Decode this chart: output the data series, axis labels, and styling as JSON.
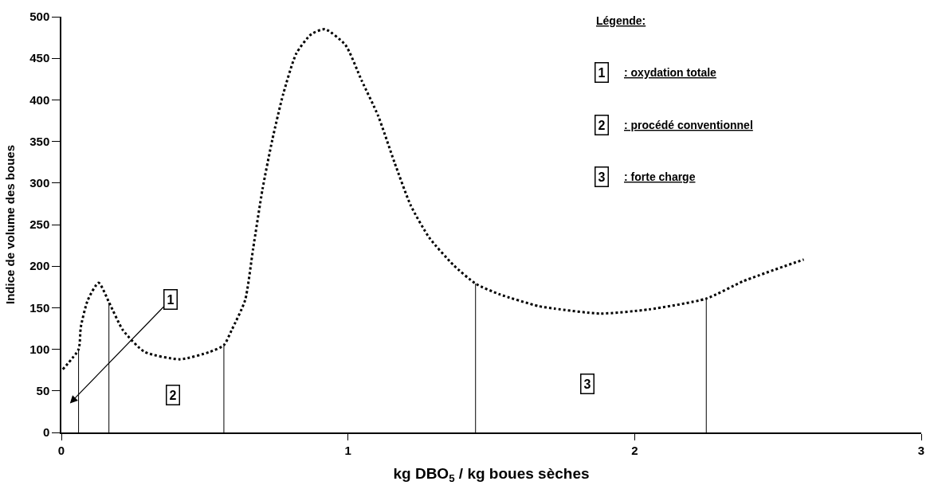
{
  "chart_data": {
    "type": "line",
    "xlabel": "kg DBO$_{5}$ / kg boues sèches",
    "ylabel": "Indice de volume des boues",
    "xlim": [
      0,
      3
    ],
    "xticks": [
      0,
      1,
      2,
      3
    ],
    "ylim": [
      0,
      500
    ],
    "yticks": [
      0,
      50,
      100,
      150,
      200,
      250,
      300,
      350,
      400,
      450,
      500
    ],
    "grid": false,
    "marker": "none",
    "series": [
      {
        "color": "#000000",
        "line_style": "dotted",
        "x": [
          0.005,
          0.06,
          0.068,
          0.092,
          0.13,
          0.167,
          0.215,
          0.29,
          0.414,
          0.519,
          0.567,
          0.594,
          0.641,
          0.669,
          0.702,
          0.736,
          0.774,
          0.82,
          0.872,
          0.92,
          0.991,
          1.048,
          1.105,
          1.162,
          1.219,
          1.284,
          1.369,
          1.445,
          1.53,
          1.664,
          1.72,
          1.88,
          2.05,
          2.25,
          2.38,
          2.59
        ],
        "values": [
          76,
          100,
          127,
          159,
          180,
          156,
          123,
          97,
          88,
          97,
          105,
          123,
          159,
          221,
          293,
          352,
          407,
          456,
          479,
          485,
          466,
          423,
          381,
          325,
          273,
          234,
          201,
          179,
          166,
          152,
          149,
          143,
          148,
          161,
          182,
          208
        ]
      },
      {
        "color": "#000000",
        "line_style": "solid",
        "x": [
          0.06,
          0.06
        ],
        "values": [
          0,
          100
        ]
      },
      {
        "color": "#000000",
        "line_style": "solid",
        "x": [
          0.166,
          0.166
        ],
        "values": [
          0,
          156
        ]
      },
      {
        "color": "#000000",
        "line_style": "solid",
        "x": [
          0.567,
          0.567
        ],
        "values": [
          0,
          105
        ]
      },
      {
        "color": "#000000",
        "line_style": "solid",
        "x": [
          1.445,
          1.445
        ],
        "values": [
          0,
          179
        ]
      },
      {
        "color": "#000000",
        "line_style": "solid",
        "x": [
          2.25,
          2.25
        ],
        "values": [
          0,
          161
        ]
      }
    ],
    "annotations": [
      "1",
      {
        "text": "2",
        "x": 0.39,
        "y": 45
      },
      {
        "text": "3",
        "x": 1.835,
        "y": 58
      },
      "Légende:",
      "1",
      ": oxydation totale",
      "2",
      ": procédé conventionnel",
      "3",
      ": forte charge"
    ]
  }
}
